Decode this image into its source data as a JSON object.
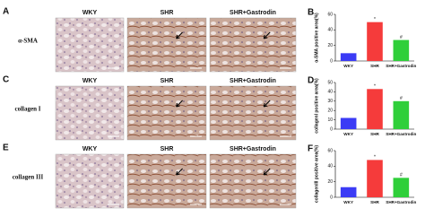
{
  "micrographs": {
    "columns": [
      "WKY",
      "SHR",
      "SHR+Gastrodin"
    ],
    "rows": [
      {
        "panel": "A",
        "label": "α-SMA"
      },
      {
        "panel": "C",
        "label": "collagen I"
      },
      {
        "panel": "E",
        "label": "collagen III"
      }
    ]
  },
  "chart_data": [
    {
      "type": "bar",
      "panel": "B",
      "y_label": "α-SMA positive area(%)",
      "categories": [
        "WKY",
        "SHR",
        "SHR+Gastrodin"
      ],
      "values": [
        10,
        50,
        27
      ],
      "colors": [
        "#3b3bf5",
        "#f53b3b",
        "#2fcf3a"
      ],
      "value_annotations": [
        null,
        "*",
        "#"
      ],
      "ylim": [
        0,
        60
      ],
      "yticks": [
        0,
        20,
        40,
        60
      ]
    },
    {
      "type": "bar",
      "panel": "D",
      "y_label": "collagenI positive area(%)",
      "categories": [
        "WKY",
        "SHR",
        "SHR+Gastrodin"
      ],
      "values": [
        12,
        43,
        30
      ],
      "colors": [
        "#3b3bf5",
        "#f53b3b",
        "#2fcf3a"
      ],
      "value_annotations": [
        null,
        "*",
        "#"
      ],
      "ylim": [
        0,
        50
      ],
      "yticks": [
        0,
        10,
        20,
        30,
        40,
        50
      ]
    },
    {
      "type": "bar",
      "panel": "F",
      "y_label": "collagenIII positive area(%)",
      "categories": [
        "WKY",
        "SHR",
        "SHR+Gastrodin"
      ],
      "values": [
        13,
        48,
        25
      ],
      "colors": [
        "#3b3bf5",
        "#f53b3b",
        "#2fcf3a"
      ],
      "value_annotations": [
        null,
        "*",
        "#"
      ],
      "ylim": [
        0,
        60
      ],
      "yticks": [
        0,
        20,
        40,
        60
      ]
    }
  ]
}
